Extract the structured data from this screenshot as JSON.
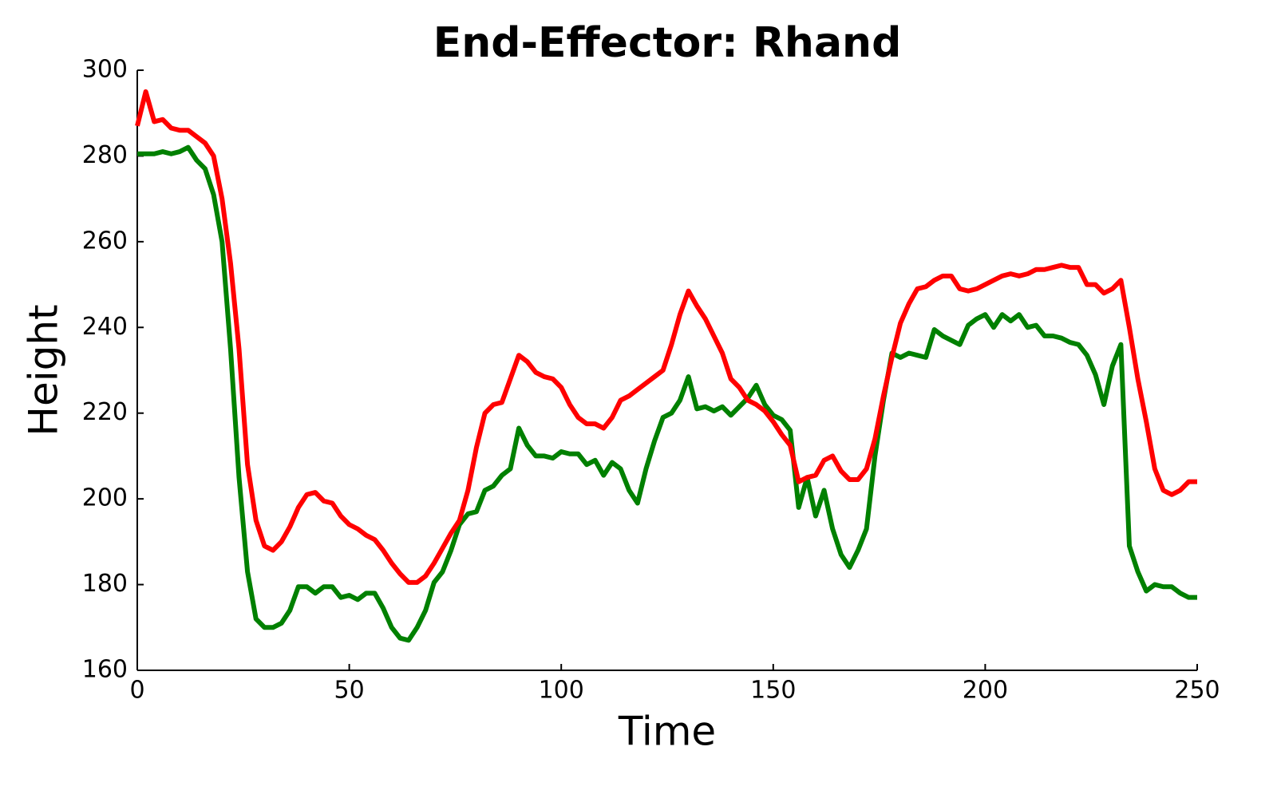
{
  "chart_data": {
    "type": "line",
    "title": "End-Effector: Rhand",
    "x_label": "Time",
    "y_label": "Height",
    "x": [
      0,
      2,
      4,
      6,
      8,
      10,
      12,
      14,
      16,
      18,
      20,
      22,
      24,
      26,
      28,
      30,
      32,
      34,
      36,
      38,
      40,
      42,
      44,
      46,
      48,
      50,
      52,
      54,
      56,
      58,
      60,
      62,
      64,
      66,
      68,
      70,
      72,
      74,
      76,
      78,
      80,
      82,
      84,
      86,
      88,
      90,
      92,
      94,
      96,
      98,
      100,
      102,
      104,
      106,
      108,
      110,
      112,
      114,
      116,
      118,
      120,
      122,
      124,
      126,
      128,
      130,
      132,
      134,
      136,
      138,
      140,
      142,
      144,
      146,
      148,
      150,
      152,
      154,
      156,
      158,
      160,
      162,
      164,
      166,
      168,
      170,
      172,
      174,
      176,
      178,
      180,
      182,
      184,
      186,
      188,
      190,
      192,
      194,
      196,
      198,
      200,
      202,
      204,
      206,
      208,
      210,
      212,
      214,
      216,
      218,
      220,
      222,
      224,
      226,
      228,
      230,
      232,
      234,
      236,
      238,
      240,
      242,
      244,
      246,
      248,
      250
    ],
    "series": [
      {
        "color": "#ff0000",
        "values": [
          287,
          295,
          288,
          288.5,
          286.5,
          286,
          286,
          284.5,
          283,
          280,
          270,
          255,
          235,
          208,
          195,
          189,
          188,
          190,
          193.5,
          198,
          201,
          201.5,
          199.5,
          199,
          196,
          194,
          193,
          191.5,
          190.5,
          188,
          185,
          182.5,
          180.5,
          180.5,
          182,
          185,
          188.5,
          192,
          195,
          202,
          212,
          220,
          222,
          222.5,
          228,
          233.5,
          232,
          229.5,
          228.5,
          228,
          226,
          222,
          219,
          217.5,
          217.5,
          216.5,
          219,
          223,
          224,
          225.5,
          227,
          228.5,
          230,
          236,
          243,
          248.5,
          245,
          242,
          238,
          234,
          228,
          226,
          223,
          222,
          220.5,
          218,
          215,
          212.5,
          204,
          205,
          205.5,
          209,
          210,
          206.5,
          204.5,
          204.5,
          207,
          214,
          224,
          233,
          241,
          245.5,
          249,
          249.5,
          251,
          252,
          252,
          249,
          248.5,
          249,
          250,
          251,
          252,
          252.5,
          252,
          252.5,
          253.5,
          253.5,
          254,
          254.5,
          254,
          254,
          250,
          250,
          248,
          249,
          251,
          240,
          228,
          218,
          207,
          202,
          201,
          202,
          204,
          204
        ]
      },
      {
        "color": "#008000",
        "values": [
          280.5,
          280.5,
          280.5,
          281,
          280.5,
          281,
          282,
          279,
          277,
          271,
          260,
          235,
          205,
          183,
          172,
          170,
          170,
          171,
          174,
          179.5,
          179.5,
          178,
          179.5,
          179.5,
          177,
          177.5,
          176.5,
          178,
          178,
          174.5,
          170,
          167.5,
          167,
          170,
          174,
          180.5,
          183,
          188,
          194,
          196.5,
          197,
          202,
          203,
          205.5,
          207,
          216.5,
          212.5,
          210,
          210,
          209.5,
          211,
          210.5,
          210.5,
          208,
          209,
          205.5,
          208.5,
          207,
          202,
          199,
          207,
          213.5,
          219,
          220,
          223,
          228.5,
          221,
          221.5,
          220.5,
          221.5,
          219.5,
          221.5,
          223.5,
          226.5,
          222,
          219.5,
          218.5,
          216,
          198,
          205,
          196,
          202,
          193,
          187,
          184,
          188,
          193,
          210,
          223,
          234,
          233,
          234,
          233.5,
          233,
          239.5,
          238,
          237,
          236,
          240.5,
          242,
          243,
          240,
          243,
          241.5,
          243,
          240,
          240.5,
          238,
          238,
          237.5,
          236.5,
          236,
          233.5,
          229,
          222,
          231,
          236,
          189,
          183,
          178.5,
          180,
          179.5,
          179.5,
          178,
          177,
          177
        ]
      }
    ],
    "xlim": [
      0,
      250
    ],
    "xticks": [
      0,
      50,
      100,
      150,
      200,
      250
    ],
    "ylim": [
      160,
      300
    ],
    "yticks": [
      160,
      180,
      200,
      220,
      240,
      260,
      280,
      300
    ],
    "grid": false
  }
}
